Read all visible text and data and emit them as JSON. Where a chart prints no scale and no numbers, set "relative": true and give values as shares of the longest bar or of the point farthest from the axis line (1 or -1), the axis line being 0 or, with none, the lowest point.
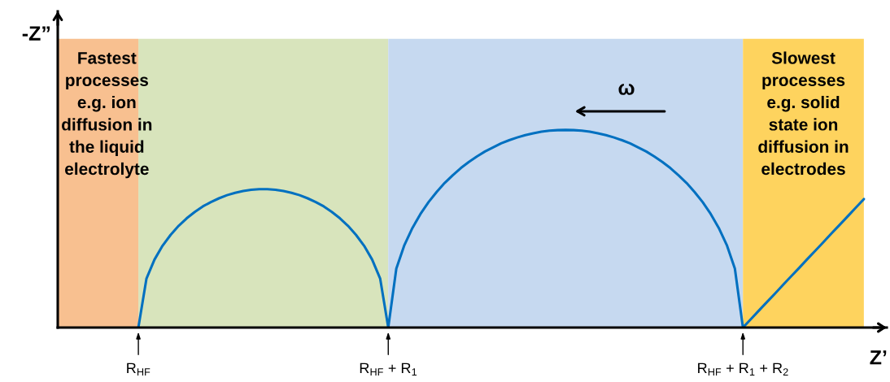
{
  "chart_data": {
    "type": "line",
    "relative": true,
    "xlabel": "Z’",
    "ylabel": "-Z”",
    "categories": [
      null,
      null,
      null,
      null,
      null,
      null,
      null,
      null,
      null,
      null,
      "R$_{HF}$",
      null,
      null,
      null,
      null,
      null,
      null,
      null,
      null,
      null,
      null,
      null,
      null,
      null,
      null,
      null,
      null,
      null,
      null,
      null,
      null,
      null,
      null,
      null,
      null,
      null,
      null,
      null,
      null,
      null,
      null,
      "R$_{HF}$ + R$_{1}$",
      null,
      null,
      null,
      null,
      null,
      null,
      null,
      null,
      null,
      null,
      null,
      null,
      null,
      null,
      null,
      null,
      null,
      null,
      null,
      null,
      null,
      null,
      null,
      null,
      null,
      null,
      null,
      null,
      null,
      null,
      null,
      null,
      null,
      null,
      null,
      null,
      null,
      null,
      null,
      null,
      null,
      null,
      null,
      "R$_{HF}$ + R$_{1}$ + R$_{2}$",
      null,
      null,
      null,
      null,
      null,
      null,
      null,
      null,
      null,
      null,
      null,
      null,
      null,
      null,
      null
    ],
    "series": [
      {
        "color": "#0070c0",
        "values": [
          null,
          null,
          null,
          null,
          null,
          null,
          null,
          null,
          null,
          null,
          0,
          0.247,
          0.344,
          0.414,
          0.469,
          0.515,
          0.553,
          0.585,
          0.613,
          0.635,
          0.654,
          0.67,
          0.682,
          0.691,
          0.697,
          0.7,
          0.7,
          0.697,
          0.691,
          0.682,
          0.67,
          0.654,
          0.635,
          0.613,
          0.585,
          0.553,
          0.515,
          0.469,
          0.414,
          0.344,
          0.247,
          0,
          0.298,
          0.417,
          0.504,
          0.575,
          0.635,
          0.686,
          0.732,
          0.771,
          0.807,
          0.838,
          0.866,
          0.891,
          0.912,
          0.932,
          0.948,
          0.962,
          0.974,
          0.983,
          0.991,
          0.996,
          0.999,
          1.0,
          0.999,
          0.996,
          0.991,
          0.983,
          0.974,
          0.962,
          0.948,
          0.932,
          0.912,
          0.891,
          0.866,
          0.838,
          0.807,
          0.771,
          0.732,
          0.686,
          0.635,
          0.575,
          0.504,
          0.417,
          0.298,
          0,
          0.043,
          0.087,
          0.13,
          0.173,
          0.217,
          0.26,
          0.303,
          0.347,
          0.39,
          0.433,
          0.477,
          0.52,
          0.563,
          0.607,
          0.65
        ]
      }
    ],
    "bands": [
      {
        "axis": "x",
        "from": "R$_{HF}$",
        "to": "R$_{HF}$ + R$_{1}$",
        "color": "#d8e4bc"
      },
      {
        "axis": "x",
        "from": "R$_{HF}$ + R$_{1}$",
        "to": "R$_{HF}$ + R$_{1}$ + R$_{2}$",
        "color": "#c6d9f0"
      }
    ],
    "annotations": [
      "Fastest\nprocesses\ne.g. ion\ndiffusion in\nthe liquid\nelectrolyte",
      "Slowest\nprocesses\ne.g. solid\nstate ion\ndiffusion in\nelectrodes",
      "ω"
    ]
  }
}
